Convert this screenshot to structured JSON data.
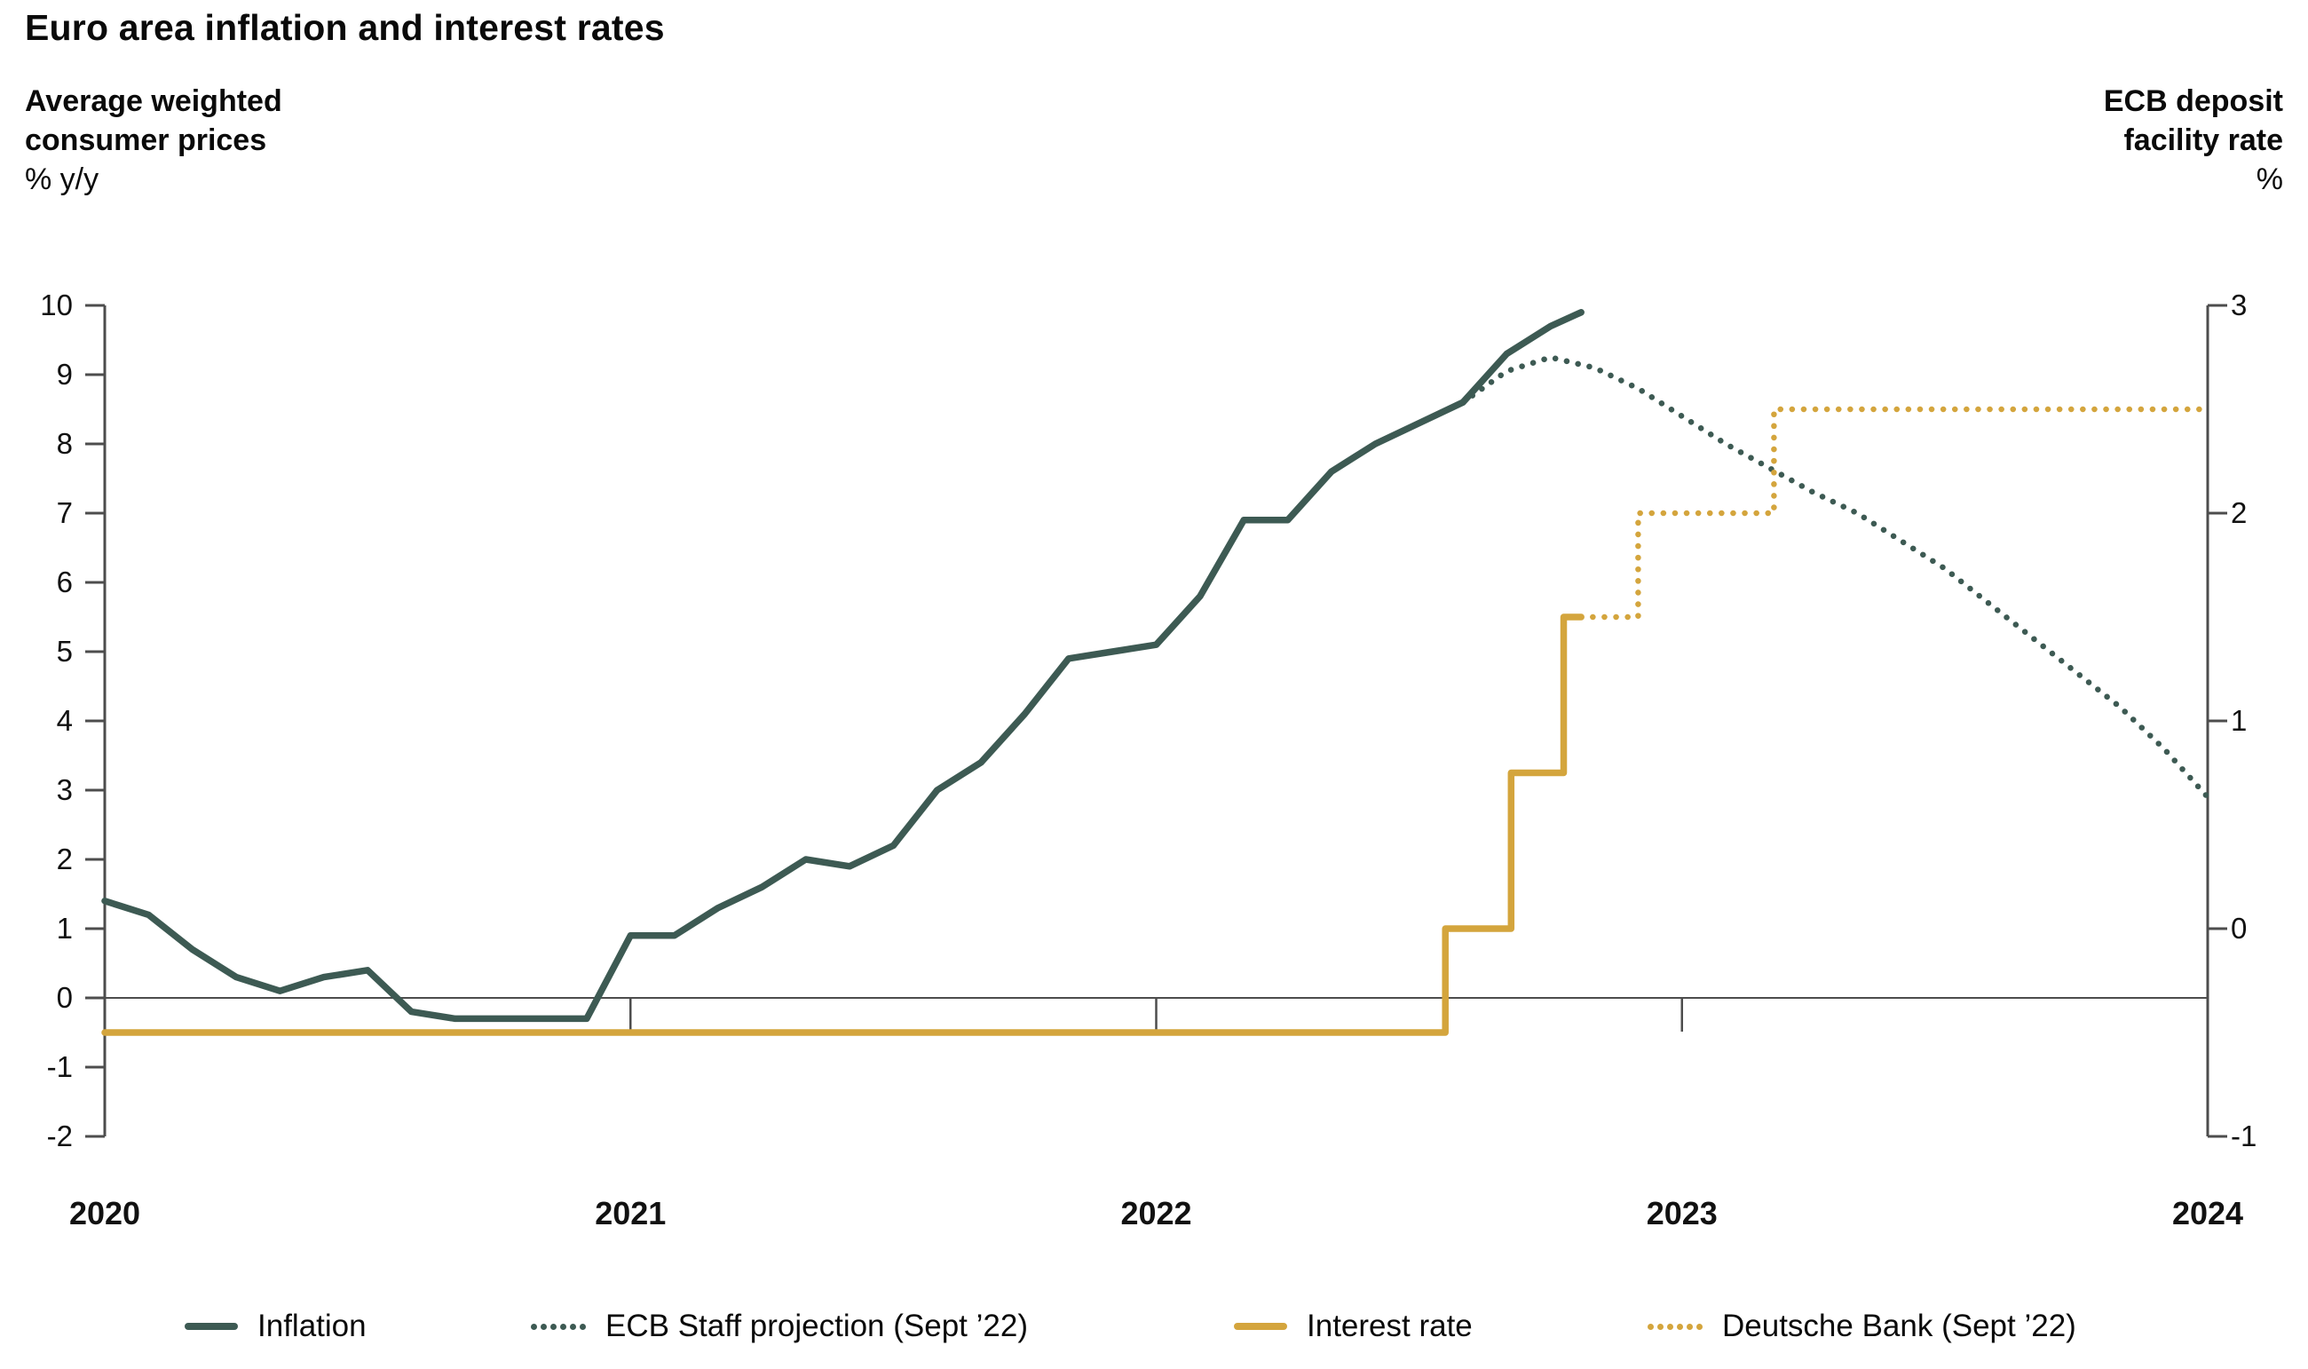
{
  "title": "Euro area inflation and interest rates",
  "left_header": {
    "line1": "Average weighted",
    "line2": "consumer prices",
    "unit": "% y/y"
  },
  "right_header": {
    "line1": "ECB deposit",
    "line2": "facility rate",
    "unit": "%"
  },
  "colors": {
    "teal": "#3d5a53",
    "gold": "#d4a53d",
    "axis": "#4d4d4d",
    "text": "#0a0a0a"
  },
  "chart_data": {
    "type": "line",
    "title": "Euro area inflation and interest rates",
    "x_unit": "months since Jan 2020",
    "x_tick_labels": [
      "2020",
      "2021",
      "2022",
      "2023",
      "2024"
    ],
    "x_tick_months": [
      0,
      12,
      24,
      36,
      48
    ],
    "left_axis": {
      "label": "Average weighted consumer prices, % y/y",
      "ticks": [
        10,
        9,
        8,
        7,
        6,
        5,
        4,
        3,
        2,
        1,
        0,
        -1,
        -2
      ],
      "range": [
        -2,
        10
      ]
    },
    "right_axis": {
      "label": "ECB deposit facility rate, %",
      "ticks": [
        3,
        2,
        1,
        0,
        -1
      ],
      "range": [
        -1,
        3
      ]
    },
    "grid": false,
    "legend_position": "bottom",
    "series": [
      {
        "name": "Inflation",
        "axis": "left",
        "style": "solid",
        "color": "#3d5a53",
        "points": [
          [
            0,
            1.4
          ],
          [
            1,
            1.2
          ],
          [
            2,
            0.7
          ],
          [
            3,
            0.3
          ],
          [
            4,
            0.1
          ],
          [
            5,
            0.3
          ],
          [
            6,
            0.4
          ],
          [
            7,
            -0.2
          ],
          [
            8,
            -0.3
          ],
          [
            9,
            -0.3
          ],
          [
            10,
            -0.3
          ],
          [
            11,
            -0.3
          ],
          [
            12,
            0.9
          ],
          [
            13,
            0.9
          ],
          [
            14,
            1.3
          ],
          [
            15,
            1.6
          ],
          [
            16,
            2.0
          ],
          [
            17,
            1.9
          ],
          [
            18,
            2.2
          ],
          [
            19,
            3.0
          ],
          [
            20,
            3.4
          ],
          [
            21,
            4.1
          ],
          [
            22,
            4.9
          ],
          [
            23,
            5.0
          ],
          [
            24,
            5.1
          ],
          [
            25,
            5.8
          ],
          [
            26,
            6.9
          ],
          [
            27,
            6.9
          ],
          [
            28,
            7.6
          ],
          [
            29,
            8.0
          ],
          [
            30,
            8.3
          ],
          [
            31,
            8.6
          ],
          [
            32,
            9.3
          ],
          [
            33,
            9.7
          ],
          [
            33.7,
            9.9
          ]
        ]
      },
      {
        "name": "ECB Staff projection (Sept ’22)",
        "axis": "left",
        "style": "dotted",
        "color": "#3d5a53",
        "points": [
          [
            31,
            8.6
          ],
          [
            32,
            9.05
          ],
          [
            33,
            9.25
          ],
          [
            34,
            9.1
          ],
          [
            35,
            8.8
          ],
          [
            36,
            8.4
          ],
          [
            37,
            8.0
          ],
          [
            38,
            7.65
          ],
          [
            39,
            7.3
          ],
          [
            40,
            7.0
          ],
          [
            41,
            6.6
          ],
          [
            42,
            6.2
          ],
          [
            43,
            5.7
          ],
          [
            44,
            5.2
          ],
          [
            45,
            4.7
          ],
          [
            46,
            4.2
          ],
          [
            47,
            3.6
          ],
          [
            48,
            2.9
          ]
        ]
      },
      {
        "name": "Interest rate",
        "axis": "right",
        "style": "solid",
        "color": "#d4a53d",
        "points": [
          [
            0,
            -0.5
          ],
          [
            30.6,
            -0.5
          ],
          [
            30.6,
            0
          ],
          [
            32.1,
            0
          ],
          [
            32.1,
            0.75
          ],
          [
            33.3,
            0.75
          ],
          [
            33.3,
            1.5
          ],
          [
            33.7,
            1.5
          ]
        ]
      },
      {
        "name": "Deutsche Bank (Sept ’22)",
        "axis": "right",
        "style": "dotted",
        "color": "#d4a53d",
        "points": [
          [
            33.7,
            1.5
          ],
          [
            35.0,
            1.5
          ],
          [
            35.0,
            2.0
          ],
          [
            38.1,
            2.0
          ],
          [
            38.1,
            2.5
          ],
          [
            48,
            2.5
          ]
        ]
      }
    ]
  },
  "legend": [
    {
      "label": "Inflation",
      "style": "solid",
      "color": "#3d5a53",
      "x": 208
    },
    {
      "label": "ECB Staff projection (Sept ’22)",
      "style": "dotted",
      "color": "#3d5a53",
      "x": 598
    },
    {
      "label": "Interest rate",
      "style": "solid",
      "color": "#d4a53d",
      "x": 1390
    },
    {
      "label": "Deutsche Bank (Sept ’22)",
      "style": "dotted",
      "color": "#d4a53d",
      "x": 1856
    }
  ]
}
